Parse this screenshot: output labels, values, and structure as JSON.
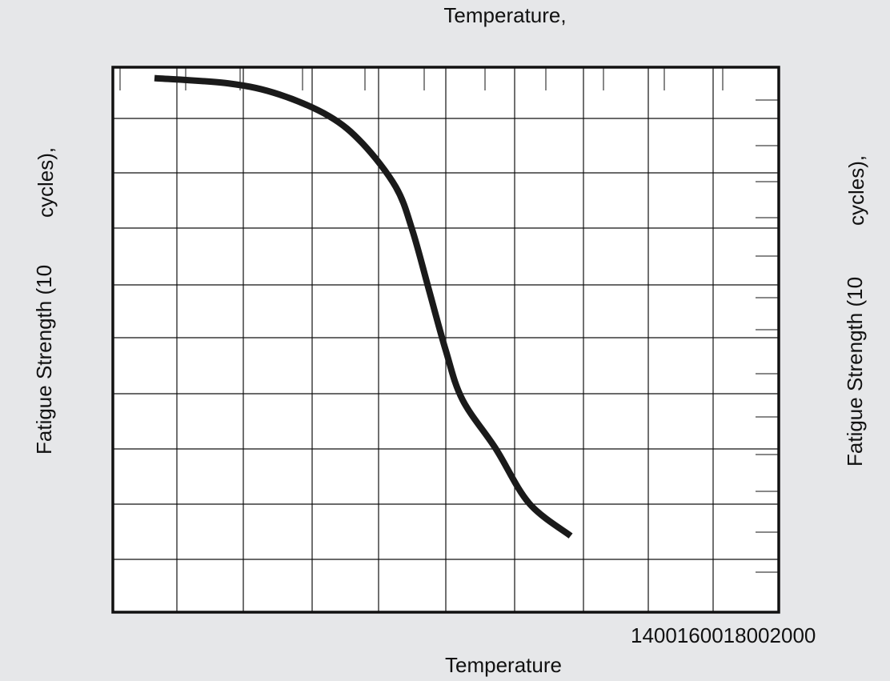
{
  "chart_data": {
    "type": "line",
    "title": "Temperature,",
    "xlabel": "Temperature",
    "ylabel_left": [
      "Fatigue Strength (10",
      "cycles),"
    ],
    "ylabel_right": [
      "Fatigue Strength (10",
      "cycles),"
    ],
    "x_tick_text": "1400160018002000",
    "xlim": [
      400,
      2400
    ],
    "ylim": [
      0,
      100
    ],
    "grid": true,
    "series": [
      {
        "x": [
          525,
          750,
          900,
          1050,
          1150,
          1250,
          1300,
          1350,
          1400,
          1450,
          1550,
          1650,
          1775
        ],
        "y": [
          98,
          97,
          95,
          91,
          86,
          78,
          70,
          59,
          48,
          39,
          30,
          20,
          14
        ]
      }
    ]
  },
  "colors": {
    "background": "#e6e7e9",
    "plot_area": "#ffffff",
    "grid": "#111111",
    "curve": "#1a1a1a"
  }
}
